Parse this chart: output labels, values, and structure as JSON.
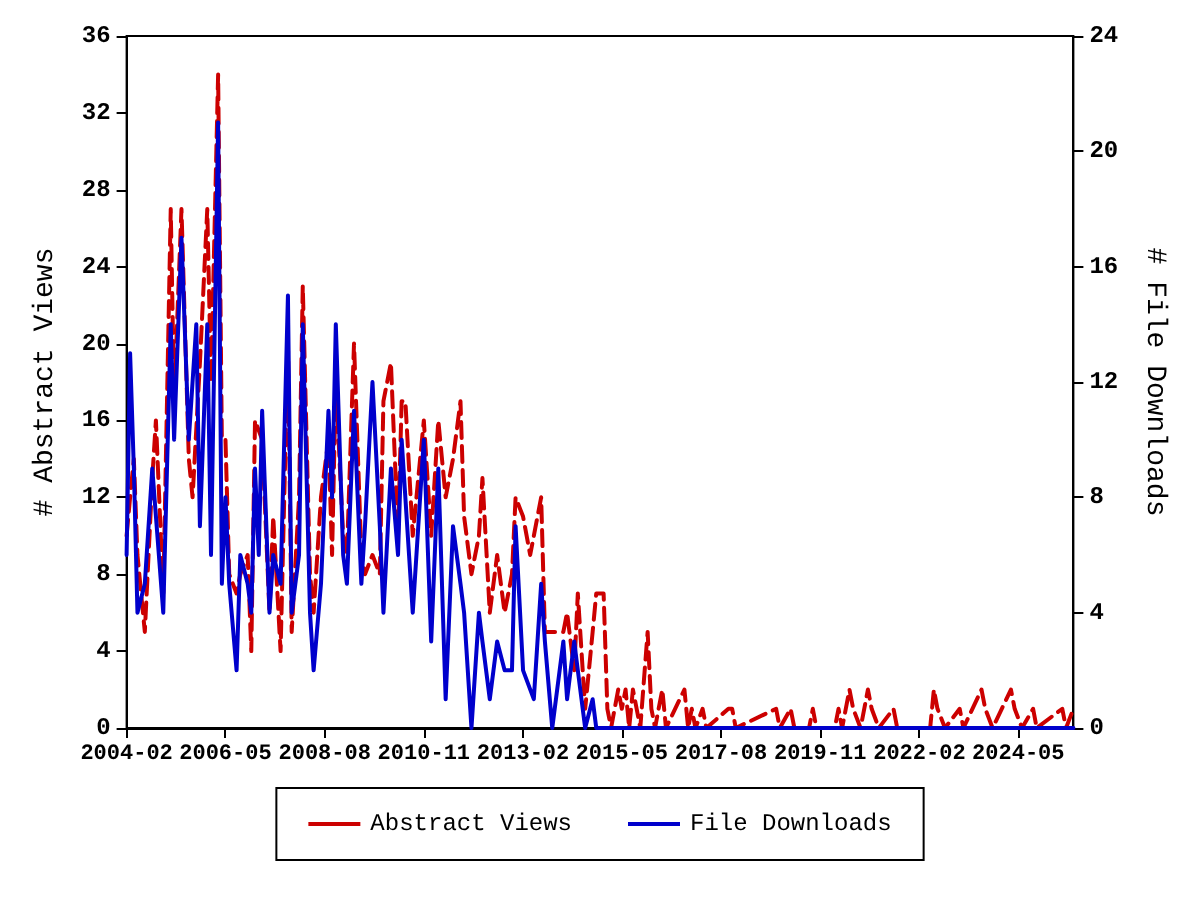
{
  "chart_data": {
    "type": "line",
    "ylabel": "# Abstract Views",
    "y2label": "# File Downloads",
    "xlim": [
      "2004-02",
      "2025-08"
    ],
    "xticks": [
      "2004-02",
      "2006-05",
      "2008-08",
      "2010-11",
      "2013-02",
      "2015-05",
      "2017-08",
      "2019-11",
      "2022-02",
      "2024-05"
    ],
    "ylim": [
      0,
      36
    ],
    "yticks": [
      0,
      4,
      8,
      12,
      16,
      20,
      24,
      28,
      32,
      36
    ],
    "y2lim": [
      0,
      24
    ],
    "y2ticks": [
      0,
      4,
      8,
      12,
      16,
      20,
      24
    ],
    "grid": false,
    "legend": "bottom",
    "marker": "none",
    "series": [
      {
        "name": "Abstract Views",
        "color": "#cc0000",
        "line_style": "dashed",
        "x": [
          "2004-02",
          "2004-03",
          "2004-04",
          "2004-05",
          "2004-07",
          "2004-09",
          "2004-10",
          "2004-12",
          "2005-02",
          "2005-03",
          "2005-05",
          "2005-07",
          "2005-08",
          "2005-10",
          "2005-12",
          "2006-01",
          "2006-03",
          "2006-04",
          "2006-05",
          "2006-06",
          "2006-08",
          "2006-09",
          "2006-11",
          "2006-12",
          "2007-01",
          "2007-03",
          "2007-05",
          "2007-06",
          "2007-08",
          "2007-10",
          "2007-11",
          "2008-01",
          "2008-02",
          "2008-04",
          "2008-05",
          "2008-07",
          "2008-09",
          "2008-10",
          "2008-11",
          "2009-01",
          "2009-02",
          "2009-04",
          "2009-06",
          "2009-07",
          "2009-09",
          "2009-11",
          "2009-12",
          "2010-02",
          "2010-04",
          "2010-05",
          "2010-06",
          "2010-08",
          "2010-11",
          "2011-01",
          "2011-03",
          "2011-05",
          "2011-07",
          "2011-09",
          "2011-10",
          "2011-12",
          "2012-02",
          "2012-03",
          "2012-05",
          "2012-07",
          "2012-09",
          "2012-11",
          "2012-12",
          "2013-02",
          "2013-04",
          "2013-07",
          "2013-08",
          "2013-10",
          "2014-01",
          "2014-02",
          "2014-04",
          "2014-05",
          "2014-07",
          "2014-09",
          "2014-10",
          "2014-12",
          "2015-01",
          "2015-02",
          "2015-04",
          "2015-05",
          "2015-06",
          "2015-07",
          "2015-08",
          "2015-09",
          "2015-10",
          "2015-12",
          "2016-01",
          "2016-02",
          "2016-03",
          "2016-04",
          "2016-05",
          "2016-10",
          "2016-11",
          "2016-12",
          "2017-01",
          "2017-03",
          "2017-04",
          "2017-10",
          "2017-11",
          "2017-12",
          "2018-11",
          "2018-12",
          "2019-03",
          "2019-04",
          "2019-08",
          "2019-09",
          "2019-10",
          "2020-03",
          "2020-04",
          "2020-05",
          "2020-07",
          "2020-08",
          "2020-10",
          "2020-12",
          "2021-01",
          "2021-03",
          "2021-07",
          "2021-08",
          "2022-05",
          "2022-06",
          "2022-07",
          "2022-09",
          "2023-01",
          "2023-02",
          "2023-07",
          "2023-08",
          "2023-10",
          "2024-03",
          "2024-04",
          "2024-06",
          "2024-09",
          "2024-10",
          "2025-05",
          "2025-06",
          "2025-08"
        ],
        "values": [
          10,
          12,
          14,
          9,
          5,
          13,
          16,
          7,
          27,
          17,
          27,
          14,
          12,
          19,
          27,
          18,
          34,
          15,
          15,
          8,
          7,
          8,
          9,
          4,
          16,
          15,
          6,
          11,
          4,
          20,
          5,
          12,
          23,
          8,
          6,
          12,
          15,
          9,
          18,
          10,
          9,
          20,
          9,
          8,
          9,
          8,
          17,
          19,
          10,
          17,
          17,
          10,
          16,
          10,
          16,
          12,
          14,
          17,
          11,
          8,
          10,
          13,
          6,
          9,
          6,
          8,
          12,
          11,
          9,
          12,
          5,
          5,
          5,
          6,
          3,
          7,
          1,
          5,
          7,
          7,
          1,
          0,
          2,
          1,
          2,
          0,
          2,
          1,
          0,
          5,
          1,
          0,
          1,
          2,
          0,
          2,
          0,
          1,
          0,
          1,
          0,
          1,
          1,
          0,
          1,
          0,
          1,
          0,
          0,
          1,
          0,
          0,
          1,
          0,
          2,
          1,
          0,
          2,
          1,
          0,
          1,
          0,
          0,
          2,
          1,
          0,
          1,
          0,
          2,
          1,
          0,
          2,
          1,
          0,
          1,
          0,
          1,
          0,
          1
        ]
      },
      {
        "name": "File Downloads",
        "color": "#0000cc",
        "line_style": "solid",
        "axis": "y2",
        "x": [
          "2004-02",
          "2004-03",
          "2004-04",
          "2004-05",
          "2004-07",
          "2004-09",
          "2004-12",
          "2005-02",
          "2005-03",
          "2005-05",
          "2005-07",
          "2005-09",
          "2005-10",
          "2005-12",
          "2006-01",
          "2006-03",
          "2006-04",
          "2006-05",
          "2006-06",
          "2006-08",
          "2006-09",
          "2006-11",
          "2006-12",
          "2007-01",
          "2007-02",
          "2007-03",
          "2007-05",
          "2007-06",
          "2007-08",
          "2007-10",
          "2007-11",
          "2008-01",
          "2008-02",
          "2008-04",
          "2008-05",
          "2008-07",
          "2008-09",
          "2008-10",
          "2008-11",
          "2009-01",
          "2009-02",
          "2009-04",
          "2009-06",
          "2009-07",
          "2009-09",
          "2009-11",
          "2009-12",
          "2010-02",
          "2010-04",
          "2010-05",
          "2010-08",
          "2010-11",
          "2011-01",
          "2011-03",
          "2011-05",
          "2011-07",
          "2011-09",
          "2011-10",
          "2011-12",
          "2012-02",
          "2012-03",
          "2012-05",
          "2012-07",
          "2012-09",
          "2012-11",
          "2012-12",
          "2013-02",
          "2013-05",
          "2013-07",
          "2013-08",
          "2013-10",
          "2014-01",
          "2014-02",
          "2014-04",
          "2014-05",
          "2014-07",
          "2014-09",
          "2014-10",
          "2025-08"
        ],
        "values": [
          6,
          13,
          9,
          4,
          5,
          9,
          4,
          14,
          10,
          17,
          10,
          14,
          7,
          14,
          6,
          21,
          5,
          8,
          5,
          2,
          6,
          5,
          4,
          9,
          6,
          11,
          4,
          6,
          5,
          15,
          4,
          6,
          14,
          4,
          2,
          5,
          11,
          8,
          14,
          6,
          5,
          11,
          5,
          7,
          12,
          7,
          4,
          9,
          6,
          10,
          4,
          10,
          3,
          9,
          1,
          7,
          5,
          4,
          0,
          4,
          3,
          1,
          3,
          2,
          2,
          7,
          2,
          1,
          5,
          3,
          0,
          3,
          1,
          3,
          2,
          0,
          1,
          0,
          0
        ]
      }
    ]
  }
}
